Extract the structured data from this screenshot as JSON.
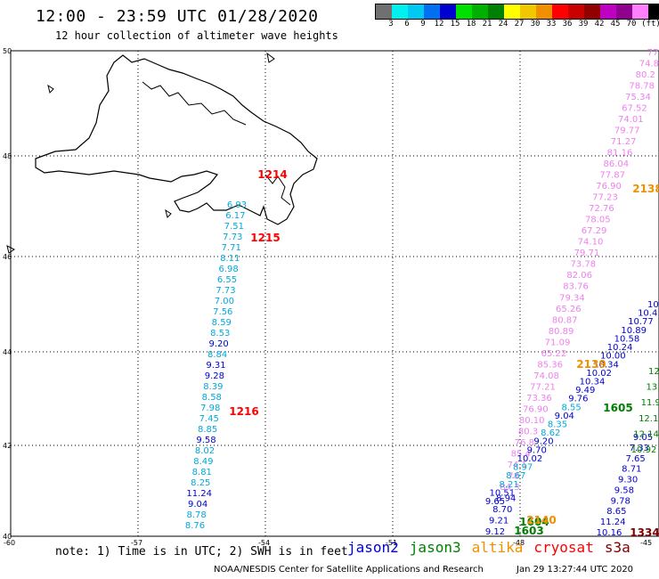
{
  "header": {
    "title": "12:00 - 23:59 UTC 01/28/2020",
    "subtitle": "12 hour collection of altimeter wave heights"
  },
  "legend": {
    "colors": [
      "#707070",
      "#00f0f0",
      "#00c8f0",
      "#0070f0",
      "#0000d0",
      "#00e000",
      "#00b000",
      "#008000",
      "#ffff00",
      "#f0c800",
      "#f09000",
      "#ff0000",
      "#c80000",
      "#900000",
      "#c000c0",
      "#900090",
      "#ff80ff",
      "#000000"
    ],
    "ticks": [
      "3",
      "6",
      "9",
      "12",
      "15",
      "18",
      "21",
      "24",
      "27",
      "30",
      "33",
      "36",
      "39",
      "42",
      "45",
      "70",
      "(ft)"
    ]
  },
  "axes": {
    "lat_labels": [
      "50",
      "48",
      "46",
      "44",
      "42",
      "40"
    ],
    "lon_labels": [
      "-60",
      "-57",
      "-54",
      "-51",
      "-48",
      "-45"
    ]
  },
  "satellite_colors": {
    "jason2": "#0000d0",
    "jason3": "#008000",
    "altika": "#f09000",
    "cryosat": "#ff0000",
    "s3a": "#800000",
    "pass_pink": "#ee80ee",
    "pass_cyan": "#00a8d8"
  },
  "pass_labels": {
    "p1215": "1215",
    "p1216": "1216",
    "p1214": "1214",
    "p2139": "2139",
    "p2138": "2138",
    "p1605": "1605",
    "p1604": "1604",
    "p1603": "1603",
    "p2140": "2140",
    "p1334": "1334"
  },
  "track_west": [
    "6.93",
    "6.17",
    "7.51",
    "7.73",
    "7.71",
    "8.11",
    "6.98",
    "6.55",
    "7.73",
    "7.00",
    "7.56",
    "8.59",
    "8.53",
    "9.20",
    "8.84",
    "9.31",
    "9.28",
    "8.39",
    "8.58",
    "7.98",
    "7.45",
    "8.85",
    "9.58",
    "8.02",
    "8.49",
    "8.81",
    "8.25",
    "11.24",
    "9.04",
    "8.78",
    "8.76"
  ],
  "track_pink": [
    "77",
    "74.8",
    "80.2",
    "78.78",
    "75.34",
    "67.52",
    "74.01",
    "79.77",
    "71.27",
    "81.16",
    "86.04",
    "77.87",
    "76.90",
    "77.23",
    "72.76",
    "78.05",
    "67.29",
    "74.10",
    "79.71",
    "73.78",
    "82.06",
    "83.76",
    "79.34",
    "65.26",
    "80.87",
    "80.89",
    "71.09",
    "65.22",
    "85.36",
    "74.08",
    "77.21",
    "73.36",
    "76.90",
    "80.10",
    "80.3",
    "76.8",
    "85.4",
    "74.1",
    "78",
    "84.3",
    "8.94",
    "8.70",
    "9.21",
    "9.12"
  ],
  "track_blue": [
    "10.",
    "10.4",
    "10.77",
    "10.89",
    "10.58",
    "10.24",
    "10.00",
    "10.34",
    "10.02",
    "10.34",
    "9.49",
    "9.76",
    "8.55",
    "9.04",
    "8.35",
    "8.62",
    "9.20",
    "9.70",
    "10.02",
    "8.97",
    "8.67",
    "8.21",
    "10.51",
    "9.65"
  ],
  "track_east": [
    "9.05",
    "7.33",
    "7.65",
    "8.71",
    "9.30",
    "9.58",
    "9.78",
    "8.65",
    "11.24",
    "10.16"
  ],
  "track_green": [
    "12.",
    "13.",
    "11.9",
    "12.1",
    "12.14",
    "10.92"
  ],
  "footer": {
    "note": "note: 1) Time is in UTC; 2) SWH is in feet",
    "sat_jason2": "jason2",
    "sat_jason3": "jason3",
    "sat_altika": "altika",
    "sat_cryosat": "cryosat",
    "sat_s3a": "s3a",
    "credit": "NOAA/NESDIS Center for Satellite Applications and Research",
    "timestamp": "Jan 29 13:27:44 UTC 2020"
  }
}
